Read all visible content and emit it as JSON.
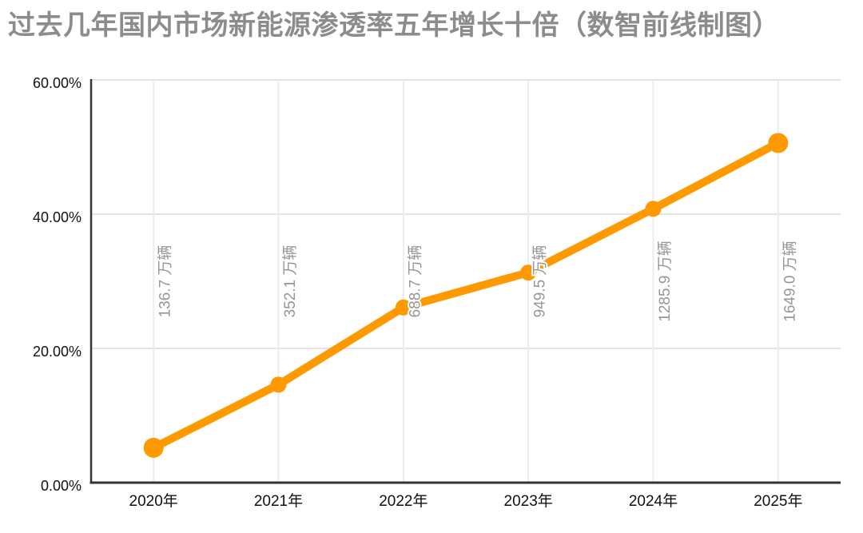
{
  "chart_data": {
    "type": "line",
    "title": "过去几年国内市场新能源渗透率五年增长十倍（数智前线制图）",
    "categories": [
      "2020年",
      "2021年",
      "2022年",
      "2023年",
      "2024年",
      "2025年"
    ],
    "values": [
      5.2,
      14.6,
      26.1,
      31.3,
      40.8,
      50.6
    ],
    "unit": "%",
    "point_labels": [
      "136.7 万辆",
      "352.1 万辆",
      "688.7 万辆",
      "949.5 万辆",
      "1285.9 万辆",
      "1649.0 万辆"
    ],
    "y_ticks": [
      {
        "v": 0,
        "label": "0.00%"
      },
      {
        "v": 20,
        "label": "20.00%"
      },
      {
        "v": 40,
        "label": "40.00%"
      },
      {
        "v": 60,
        "label": "60.00%"
      }
    ],
    "ylim": [
      0,
      60
    ],
    "xlabel": "",
    "ylabel": "",
    "grid": true,
    "legend": "none",
    "line_color": "#ff9900",
    "label_color": "#969696",
    "axis_text_color": "#111111",
    "title_color": "#8c8c8c"
  }
}
